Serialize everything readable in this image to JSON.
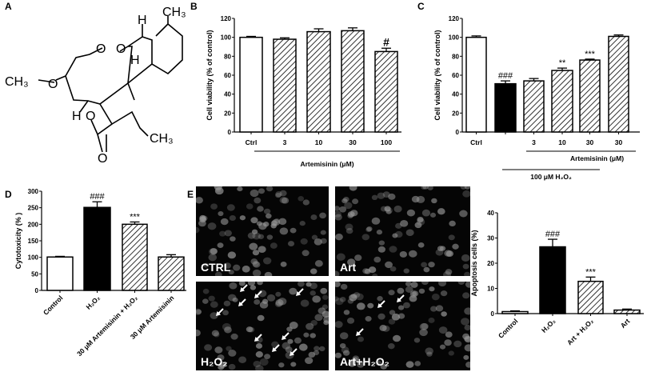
{
  "panel_labels": [
    "A",
    "B",
    "C",
    "D",
    "E"
  ],
  "structure": {
    "atoms": [
      "H",
      "CH₃",
      "O",
      "O",
      "CH₃",
      "O",
      "H",
      "H",
      "O",
      "O",
      "CH₃"
    ]
  },
  "colors": {
    "bar_edge": "#000000",
    "control_fill": "#ffffff",
    "h2o2_fill": "#000000",
    "hatch": "#000000",
    "micrograph_bg": "#050505"
  },
  "chart_data": [
    {
      "panel": "B",
      "type": "bar",
      "ylabel": "Cell viability (% of control)",
      "ylim": [
        0,
        120
      ],
      "yticks": [
        0,
        20,
        40,
        60,
        80,
        100,
        120
      ],
      "categories": [
        "Ctrl",
        "3",
        "10",
        "30",
        "100"
      ],
      "values": [
        100,
        98,
        106,
        107,
        85
      ],
      "errors": [
        1,
        1.5,
        3,
        3,
        3.5
      ],
      "fills": [
        "white",
        "hatch",
        "hatch",
        "hatch",
        "hatch"
      ],
      "annotations": [
        "",
        "",
        "",
        "",
        "#"
      ],
      "group_labels": [
        "Artemisinin (μM)"
      ]
    },
    {
      "panel": "C",
      "type": "bar",
      "ylabel": "Cell viability (% of control)",
      "ylim": [
        0,
        120
      ],
      "yticks": [
        0,
        20,
        40,
        60,
        80,
        100,
        120
      ],
      "categories": [
        "Ctrl",
        "",
        "3",
        "10",
        "30",
        "30"
      ],
      "values": [
        100,
        51,
        54,
        65,
        76,
        101
      ],
      "errors": [
        1.5,
        3,
        2.5,
        2.5,
        1,
        1.5
      ],
      "fills": [
        "white",
        "black",
        "hatch",
        "hatch",
        "hatch",
        "hatch"
      ],
      "annotations": [
        "",
        "###",
        "",
        "**",
        "***",
        ""
      ],
      "group_labels": [
        "Artemisinin (μM)",
        "100 μM H₂O₂"
      ]
    },
    {
      "panel": "D",
      "type": "bar",
      "ylabel": "Cytotoxicity (% )",
      "ylim": [
        0,
        300
      ],
      "yticks": [
        0,
        50,
        100,
        150,
        200,
        250,
        300
      ],
      "categories": [
        "Control",
        "H₂O₂",
        "30 μM Artemisinin + H₂O₂",
        "30 μM Artemisinin"
      ],
      "values": [
        101,
        251,
        200,
        101
      ],
      "errors": [
        2,
        17,
        7,
        7
      ],
      "fills": [
        "white",
        "black",
        "hatch",
        "hatch"
      ],
      "annotations": [
        "",
        "###",
        "***",
        ""
      ]
    },
    {
      "panel": "E",
      "type": "bar",
      "ylabel": "Apoptosis cells (%)",
      "ylim": [
        0,
        40
      ],
      "yticks": [
        0,
        10,
        20,
        30,
        40
      ],
      "categories": [
        "Control",
        "H₂O₂",
        "Art + H₂O₂",
        "Art"
      ],
      "values": [
        0.8,
        26.5,
        12.8,
        1.4
      ],
      "errors": [
        0.3,
        3,
        1.7,
        0.4
      ],
      "fills": [
        "white",
        "black",
        "hatch",
        "hatch"
      ],
      "annotations": [
        "",
        "###",
        "***",
        ""
      ]
    }
  ],
  "micrographs": [
    {
      "label": "CTRL"
    },
    {
      "label": "Art"
    },
    {
      "label": "H₂O₂"
    },
    {
      "label": "Art+H₂O₂"
    }
  ]
}
